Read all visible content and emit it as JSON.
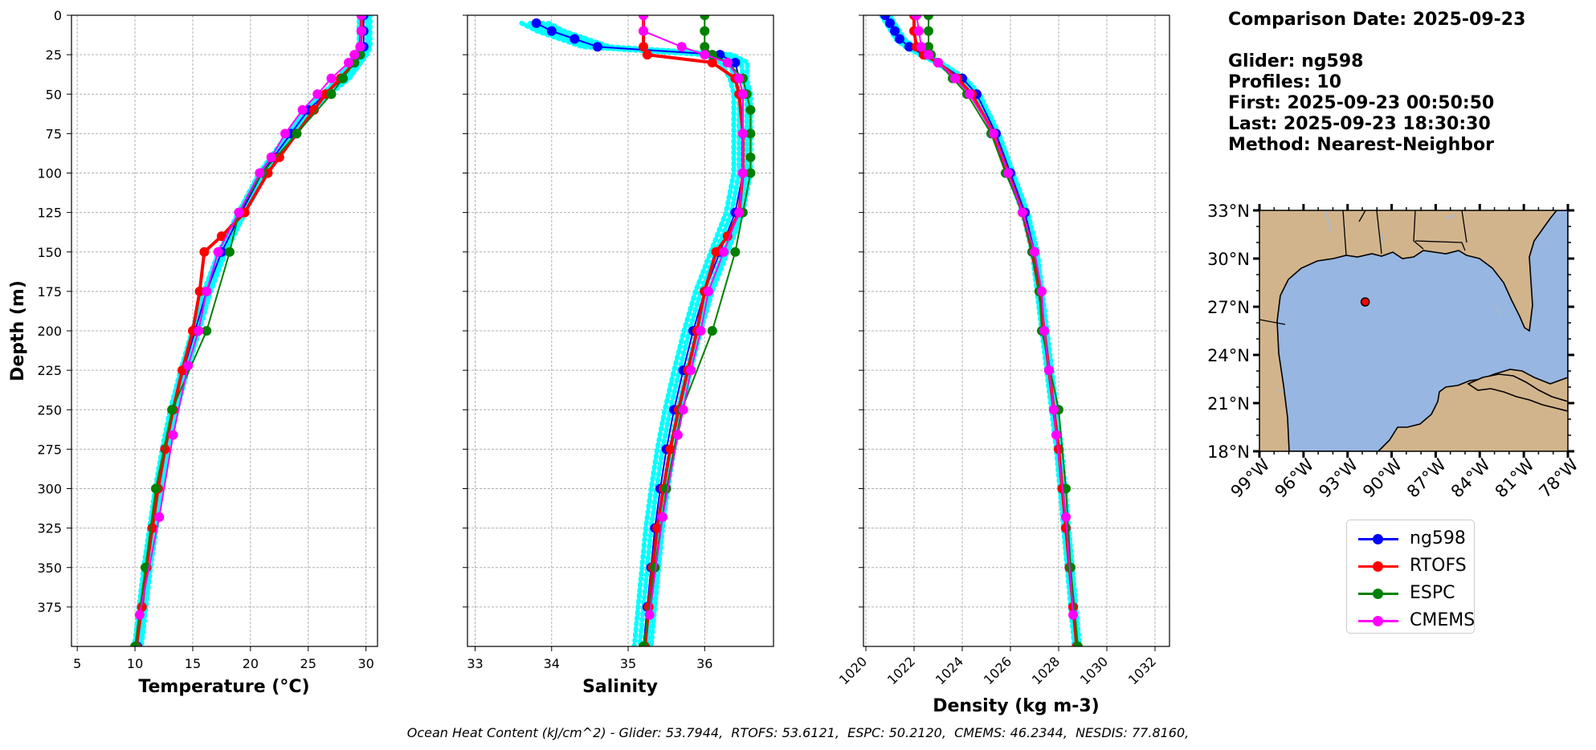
{
  "info": {
    "comparison_date": "Comparison Date: 2025-09-23",
    "glider": "Glider: ng598",
    "profiles": "Profiles: 10",
    "first": "First: 2025-09-23 00:50:50",
    "last": "Last: 2025-09-23 18:30:30",
    "method": "Method: Nearest-Neighbor"
  },
  "footer": {
    "label": "Ocean Heat Content (kJ/cm^2)",
    "items": [
      {
        "name": "Glider",
        "value": "53.7944"
      },
      {
        "name": "RTOFS",
        "value": "53.6121"
      },
      {
        "name": "ESPC",
        "value": "50.2120"
      },
      {
        "name": "CMEMS",
        "value": "46.2344"
      },
      {
        "name": "NESDIS",
        "value": "77.8160"
      }
    ]
  },
  "colors": {
    "ng598": "#0000ff",
    "RTOFS": "#ff0000",
    "ESPC": "#008000",
    "CMEMS": "#ff00ff",
    "raw_profiles": "#00ffff",
    "land": "#d2b48c",
    "ocean": "#97b6e1"
  },
  "legend": [
    "ng598",
    "RTOFS",
    "ESPC",
    "CMEMS"
  ],
  "chart_data": [
    {
      "type": "line",
      "xlabel": "Temperature (°C)",
      "ylabel": "Depth (m)",
      "xlim": [
        4.5,
        31
      ],
      "ylim": [
        400,
        0
      ],
      "xticks": [
        5,
        10,
        15,
        20,
        25,
        30
      ],
      "yticks": [
        0,
        25,
        50,
        75,
        100,
        125,
        150,
        175,
        200,
        225,
        250,
        275,
        300,
        325,
        350,
        375
      ],
      "grid": true,
      "series": [
        {
          "name": "ng598",
          "depth": [
            0,
            10,
            20,
            25,
            30,
            40,
            50,
            60,
            75,
            90,
            100,
            125,
            150,
            175,
            200,
            225,
            250,
            275,
            300,
            325,
            350,
            375,
            400
          ],
          "values": [
            29.8,
            29.8,
            29.8,
            29.5,
            29,
            28,
            26.5,
            25,
            23.5,
            22,
            21,
            19.2,
            17.5,
            16.2,
            15.2,
            14.2,
            13.3,
            12.6,
            12,
            11.5,
            11,
            10.6,
            10.2
          ]
        },
        {
          "name": "RTOFS",
          "depth": [
            0,
            10,
            20,
            25,
            30,
            40,
            50,
            60,
            75,
            90,
            100,
            125,
            140,
            150,
            175,
            200,
            225,
            250,
            275,
            300,
            325,
            350,
            375,
            400
          ],
          "values": [
            29.6,
            29.6,
            29.5,
            29.3,
            29,
            27.8,
            26.5,
            25.5,
            24,
            22.5,
            21.5,
            19.5,
            17.5,
            16,
            15.6,
            15,
            14.1,
            13.3,
            12.6,
            12,
            11.5,
            11,
            10.6,
            10.1
          ]
        },
        {
          "name": "ESPC",
          "depth": [
            0,
            10,
            25,
            30,
            40,
            50,
            75,
            100,
            125,
            150,
            200,
            250,
            300,
            350,
            400
          ],
          "values": [
            29.6,
            29.6,
            29.5,
            29,
            28,
            27,
            24,
            21,
            19,
            18.2,
            16.2,
            13.2,
            11.8,
            10.9,
            10
          ]
        },
        {
          "name": "CMEMS",
          "depth": [
            0,
            10,
            20,
            25,
            30,
            40,
            50,
            60,
            75,
            90,
            100,
            125,
            150,
            175,
            200,
            222,
            266,
            318,
            380
          ],
          "values": [
            29.6,
            29.6,
            29.5,
            29,
            28.5,
            27,
            25.8,
            24.5,
            23,
            21.8,
            20.8,
            19,
            17.2,
            16.2,
            15.5,
            14.6,
            13.3,
            12.1,
            10.4
          ]
        }
      ]
    },
    {
      "type": "line",
      "xlabel": "Salinity",
      "xlim": [
        32.9,
        36.9
      ],
      "ylim": [
        400,
        0
      ],
      "xticks": [
        33,
        34,
        35,
        36
      ],
      "grid": true,
      "series": [
        {
          "name": "ng598",
          "depth": [
            5,
            10,
            15,
            20,
            25,
            30,
            40,
            50,
            75,
            100,
            125,
            150,
            175,
            200,
            225,
            250,
            275,
            300,
            325,
            350,
            375,
            400
          ],
          "values": [
            33.8,
            34,
            34.3,
            34.6,
            36.2,
            36.4,
            36.45,
            36.5,
            36.5,
            36.5,
            36.4,
            36.2,
            36,
            35.85,
            35.72,
            35.6,
            35.5,
            35.42,
            35.35,
            35.3,
            35.25,
            35.2
          ]
        },
        {
          "name": "RTOFS",
          "depth": [
            0,
            10,
            20,
            25,
            30,
            40,
            50,
            75,
            100,
            125,
            140,
            150,
            175,
            200,
            225,
            250,
            275,
            300,
            325,
            350,
            375,
            400
          ],
          "values": [
            35.2,
            35.2,
            35.2,
            35.25,
            36.1,
            36.4,
            36.45,
            36.5,
            36.5,
            36.45,
            36.3,
            36.15,
            36,
            35.9,
            35.78,
            35.66,
            35.55,
            35.46,
            35.38,
            35.32,
            35.27,
            35.22
          ]
        },
        {
          "name": "ESPC",
          "depth": [
            0,
            10,
            20,
            25,
            30,
            40,
            50,
            60,
            75,
            90,
            100,
            125,
            150,
            200,
            250,
            300,
            350,
            400
          ],
          "values": [
            36,
            36,
            36,
            36.1,
            36.3,
            36.5,
            36.55,
            36.6,
            36.6,
            36.6,
            36.6,
            36.5,
            36.4,
            36.1,
            35.7,
            35.5,
            35.35,
            35.2
          ]
        },
        {
          "name": "CMEMS",
          "depth": [
            0,
            10,
            20,
            25,
            30,
            40,
            50,
            75,
            100,
            125,
            150,
            175,
            200,
            225,
            250,
            266,
            318,
            380
          ],
          "values": [
            35.2,
            35.2,
            35.7,
            36,
            36.3,
            36.45,
            36.5,
            36.5,
            36.5,
            36.45,
            36.25,
            36.05,
            35.95,
            35.82,
            35.72,
            35.65,
            35.45,
            35.28
          ]
        }
      ]
    },
    {
      "type": "line",
      "xlabel": "Density (kg m-3)",
      "xlim": [
        1019.9,
        1032.6
      ],
      "ylim": [
        400,
        0
      ],
      "xticks": [
        1020,
        1022,
        1024,
        1026,
        1028,
        1030,
        1032
      ],
      "grid": true,
      "series": [
        {
          "name": "ng598",
          "depth": [
            0,
            5,
            10,
            15,
            20,
            25,
            30,
            40,
            50,
            75,
            100,
            125,
            150,
            175,
            200,
            225,
            250,
            275,
            300,
            325,
            350,
            375,
            400
          ],
          "values": [
            1020.8,
            1021,
            1021.2,
            1021.4,
            1021.8,
            1022.4,
            1023,
            1024,
            1024.6,
            1025.4,
            1026,
            1026.6,
            1027,
            1027.2,
            1027.4,
            1027.6,
            1027.8,
            1028,
            1028.15,
            1028.3,
            1028.45,
            1028.6,
            1028.75
          ]
        },
        {
          "name": "RTOFS",
          "depth": [
            0,
            10,
            20,
            25,
            30,
            40,
            50,
            75,
            100,
            125,
            150,
            175,
            200,
            225,
            250,
            275,
            300,
            325,
            350,
            375,
            400
          ],
          "values": [
            1022,
            1022,
            1022.1,
            1022.4,
            1023,
            1023.8,
            1024.4,
            1025.3,
            1025.9,
            1026.5,
            1026.9,
            1027.2,
            1027.4,
            1027.6,
            1027.8,
            1028,
            1028.15,
            1028.3,
            1028.45,
            1028.6,
            1028.75
          ]
        },
        {
          "name": "ESPC",
          "depth": [
            0,
            10,
            20,
            25,
            30,
            40,
            50,
            75,
            100,
            125,
            150,
            175,
            200,
            250,
            300,
            350,
            400
          ],
          "values": [
            1022.6,
            1022.6,
            1022.6,
            1022.7,
            1023,
            1023.6,
            1024.2,
            1025.2,
            1025.8,
            1026.5,
            1026.9,
            1027.2,
            1027.3,
            1028,
            1028.3,
            1028.5,
            1028.8
          ]
        },
        {
          "name": "CMEMS",
          "depth": [
            0,
            10,
            20,
            25,
            30,
            40,
            50,
            75,
            100,
            125,
            150,
            175,
            200,
            225,
            250,
            266,
            318,
            380
          ],
          "values": [
            1022.1,
            1022.2,
            1022.3,
            1022.6,
            1023,
            1023.7,
            1024.3,
            1025.3,
            1025.9,
            1026.5,
            1027,
            1027.3,
            1027.4,
            1027.6,
            1027.8,
            1027.9,
            1028.3,
            1028.6
          ]
        }
      ]
    },
    {
      "type": "map",
      "xticks": [
        "99°W",
        "96°W",
        "93°W",
        "90°W",
        "87°W",
        "84°W",
        "81°W",
        "78°W"
      ],
      "yticks": [
        "33°N",
        "30°N",
        "27°N",
        "24°N",
        "21°N",
        "18°N"
      ],
      "lon_range": [
        -99,
        -78
      ],
      "lat_range": [
        18,
        33
      ],
      "glider_position": {
        "lon": -91.8,
        "lat": 27.3
      }
    }
  ]
}
